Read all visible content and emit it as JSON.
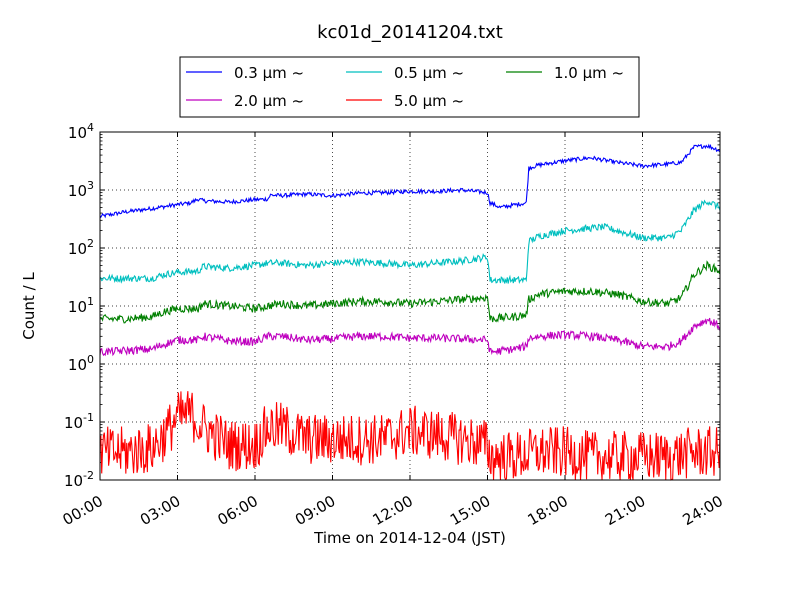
{
  "chart_data": {
    "type": "line",
    "title": "kc01d_20141204.txt",
    "xlabel": "Time on 2014-12-04 (JST)",
    "ylabel": "Count / L",
    "x_unit": "hour",
    "xlim": [
      0,
      24
    ],
    "ylim": [
      0.01,
      10000
    ],
    "yscale": "log",
    "grid": true,
    "legend_position": "top",
    "x_tick_labels": [
      "00:00",
      "03:00",
      "06:00",
      "09:00",
      "12:00",
      "15:00",
      "18:00",
      "21:00",
      "24:00"
    ],
    "y_tick_labels": [
      {
        "base": "10",
        "exp": "-2"
      },
      {
        "base": "10",
        "exp": "-1"
      },
      {
        "base": "10",
        "exp": "0"
      },
      {
        "base": "10",
        "exp": "1"
      },
      {
        "base": "10",
        "exp": "2"
      },
      {
        "base": "10",
        "exp": "3"
      },
      {
        "base": "10",
        "exp": "4"
      }
    ],
    "series": [
      {
        "name": "0.3 μm ~",
        "color": "#0000ff",
        "noise": 0.035,
        "points": [
          [
            0,
            350
          ],
          [
            1,
            420
          ],
          [
            2,
            480
          ],
          [
            3,
            560
          ],
          [
            3.5,
            600
          ],
          [
            3.8,
            700
          ],
          [
            4,
            650
          ],
          [
            5,
            620
          ],
          [
            6,
            680
          ],
          [
            6.5,
            700
          ],
          [
            6.6,
            820
          ],
          [
            7,
            800
          ],
          [
            8,
            850
          ],
          [
            9,
            800
          ],
          [
            10,
            880
          ],
          [
            11,
            900
          ],
          [
            12,
            950
          ],
          [
            13,
            950
          ],
          [
            14,
            1000
          ],
          [
            15,
            900
          ],
          [
            15.1,
            600
          ],
          [
            15.5,
            500
          ],
          [
            16,
            550
          ],
          [
            16.5,
            600
          ],
          [
            16.6,
            2400
          ],
          [
            17,
            2700
          ],
          [
            18,
            3200
          ],
          [
            19,
            3600
          ],
          [
            20,
            3000
          ],
          [
            21,
            2600
          ],
          [
            22,
            2800
          ],
          [
            22.5,
            3000
          ],
          [
            23,
            5500
          ],
          [
            23.5,
            5800
          ],
          [
            24,
            4800
          ]
        ]
      },
      {
        "name": "0.5 μm ~",
        "color": "#00bfbf",
        "noise": 0.06,
        "points": [
          [
            0,
            30
          ],
          [
            1,
            30
          ],
          [
            2,
            30
          ],
          [
            2.5,
            35
          ],
          [
            3,
            38
          ],
          [
            3.8,
            40
          ],
          [
            4,
            48
          ],
          [
            5,
            45
          ],
          [
            6,
            50
          ],
          [
            6.5,
            55
          ],
          [
            7,
            55
          ],
          [
            8,
            50
          ],
          [
            9,
            55
          ],
          [
            10,
            58
          ],
          [
            11,
            55
          ],
          [
            12,
            50
          ],
          [
            13,
            55
          ],
          [
            14,
            60
          ],
          [
            15,
            70
          ],
          [
            15.1,
            28
          ],
          [
            16,
            28
          ],
          [
            16.5,
            28
          ],
          [
            16.6,
            130
          ],
          [
            17,
            160
          ],
          [
            18,
            200
          ],
          [
            19,
            220
          ],
          [
            19.5,
            230
          ],
          [
            20,
            200
          ],
          [
            21,
            150
          ],
          [
            22,
            150
          ],
          [
            22.5,
            200
          ],
          [
            23,
            450
          ],
          [
            23.5,
            650
          ],
          [
            24,
            500
          ]
        ]
      },
      {
        "name": "1.0 μm ~",
        "color": "#008000",
        "noise": 0.07,
        "points": [
          [
            0,
            6
          ],
          [
            1,
            6
          ],
          [
            2,
            6.5
          ],
          [
            2.5,
            8
          ],
          [
            3,
            9
          ],
          [
            3.8,
            9
          ],
          [
            4,
            11
          ],
          [
            5,
            10
          ],
          [
            6,
            9
          ],
          [
            6.5,
            10
          ],
          [
            7,
            11
          ],
          [
            8,
            10
          ],
          [
            9,
            11
          ],
          [
            10,
            12
          ],
          [
            11,
            12
          ],
          [
            12,
            11
          ],
          [
            13,
            12
          ],
          [
            14,
            13
          ],
          [
            15,
            14
          ],
          [
            15.1,
            6
          ],
          [
            16,
            6.5
          ],
          [
            16.5,
            7
          ],
          [
            16.6,
            13
          ],
          [
            17,
            16
          ],
          [
            18,
            18
          ],
          [
            19,
            18
          ],
          [
            20,
            16
          ],
          [
            21,
            12
          ],
          [
            22,
            11
          ],
          [
            22.5,
            14
          ],
          [
            23,
            35
          ],
          [
            23.5,
            50
          ],
          [
            24,
            40
          ]
        ]
      },
      {
        "name": "2.0 μm ~",
        "color": "#bf00bf",
        "noise": 0.07,
        "points": [
          [
            0,
            1.6
          ],
          [
            1,
            1.7
          ],
          [
            2,
            1.8
          ],
          [
            2.5,
            2.2
          ],
          [
            3,
            2.6
          ],
          [
            3.8,
            2.6
          ],
          [
            4,
            3
          ],
          [
            5,
            2.5
          ],
          [
            6,
            2.4
          ],
          [
            6.5,
            3
          ],
          [
            7,
            3
          ],
          [
            8,
            2.6
          ],
          [
            9,
            2.7
          ],
          [
            10,
            3
          ],
          [
            11,
            3
          ],
          [
            12,
            2.8
          ],
          [
            13,
            2.8
          ],
          [
            14,
            2.7
          ],
          [
            15,
            2.6
          ],
          [
            15.1,
            1.6
          ],
          [
            16,
            1.8
          ],
          [
            16.5,
            2
          ],
          [
            16.6,
            2.8
          ],
          [
            17,
            3
          ],
          [
            18,
            3.2
          ],
          [
            19,
            3
          ],
          [
            20,
            2.6
          ],
          [
            21,
            2
          ],
          [
            22,
            2
          ],
          [
            22.5,
            2.5
          ],
          [
            23,
            4.5
          ],
          [
            23.5,
            5.8
          ],
          [
            24,
            4.5
          ]
        ]
      },
      {
        "name": "5.0 μm ~",
        "color": "#ff0000",
        "noise": 0.45,
        "points": [
          [
            0,
            0.03
          ],
          [
            1,
            0.03
          ],
          [
            2,
            0.035
          ],
          [
            2.5,
            0.06
          ],
          [
            3,
            0.12
          ],
          [
            3.5,
            0.14
          ],
          [
            4,
            0.08
          ],
          [
            5,
            0.04
          ],
          [
            6,
            0.04
          ],
          [
            6.5,
            0.08
          ],
          [
            7,
            0.08
          ],
          [
            8,
            0.05
          ],
          [
            9,
            0.05
          ],
          [
            10,
            0.05
          ],
          [
            11,
            0.05
          ],
          [
            11.5,
            0.06
          ],
          [
            12,
            0.07
          ],
          [
            13,
            0.06
          ],
          [
            14,
            0.05
          ],
          [
            15,
            0.04
          ],
          [
            15.1,
            0.025
          ],
          [
            16,
            0.025
          ],
          [
            17,
            0.03
          ],
          [
            18,
            0.03
          ],
          [
            19,
            0.025
          ],
          [
            20,
            0.025
          ],
          [
            21,
            0.025
          ],
          [
            22,
            0.025
          ],
          [
            23,
            0.03
          ],
          [
            24,
            0.03
          ]
        ]
      }
    ]
  }
}
